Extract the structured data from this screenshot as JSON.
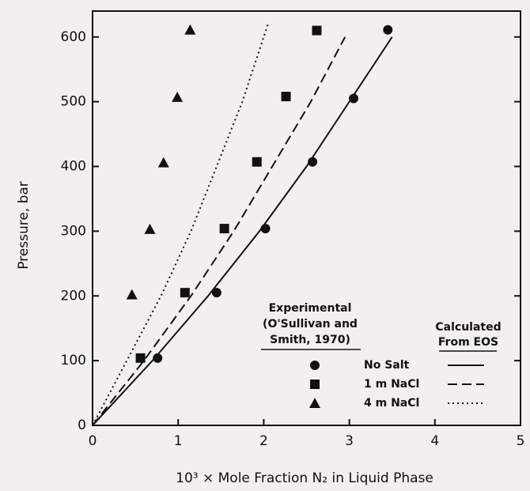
{
  "chart_data": {
    "type": "scatter",
    "x_label": "10³ × Mole Fraction N₂ in Liquid Phase",
    "y_label": "Pressure, bar",
    "xlim": [
      0,
      5
    ],
    "ylim": [
      0,
      640
    ],
    "xticks": [
      0,
      1,
      2,
      3,
      4,
      5
    ],
    "yticks": [
      0,
      100,
      200,
      300,
      400,
      500,
      600
    ],
    "legend_experimental": [
      "Experimental",
      "(O'Sullivan and",
      "Smith, 1970)"
    ],
    "legend_calculated": [
      "Calculated",
      "From EOS"
    ],
    "series": [
      {
        "name": "No Salt",
        "marker": "circle",
        "color": "#111111",
        "x": [
          0.76,
          1.45,
          2.02,
          2.57,
          3.05,
          3.45
        ],
        "values": [
          104,
          205,
          304,
          407,
          505,
          611
        ]
      },
      {
        "name": "1 m NaCl",
        "marker": "square",
        "color": "#111111",
        "x": [
          0.56,
          1.08,
          1.54,
          1.92,
          2.26,
          2.62
        ],
        "values": [
          104,
          205,
          304,
          407,
          508,
          610
        ]
      },
      {
        "name": "4 m NaCl",
        "marker": "triangle",
        "color": "#111111",
        "x": [
          0.46,
          0.67,
          0.83,
          0.99,
          1.14
        ],
        "values": [
          202,
          303,
          406,
          507,
          611
        ]
      }
    ],
    "curves": [
      {
        "style": "solid",
        "x": [
          0,
          0.7,
          1.35,
          1.95,
          2.5,
          3.0,
          3.5
        ],
        "values": [
          0,
          100,
          200,
          300,
          400,
          500,
          600
        ]
      },
      {
        "style": "dashed",
        "x": [
          0,
          0.6,
          1.15,
          1.65,
          2.1,
          2.55,
          2.95
        ],
        "values": [
          0,
          100,
          200,
          300,
          400,
          500,
          600
        ]
      },
      {
        "style": "dotted",
        "x": [
          0,
          0.4,
          0.8,
          1.15,
          1.45,
          1.75,
          2.05
        ],
        "values": [
          0,
          100,
          200,
          300,
          400,
          500,
          620
        ]
      }
    ]
  }
}
